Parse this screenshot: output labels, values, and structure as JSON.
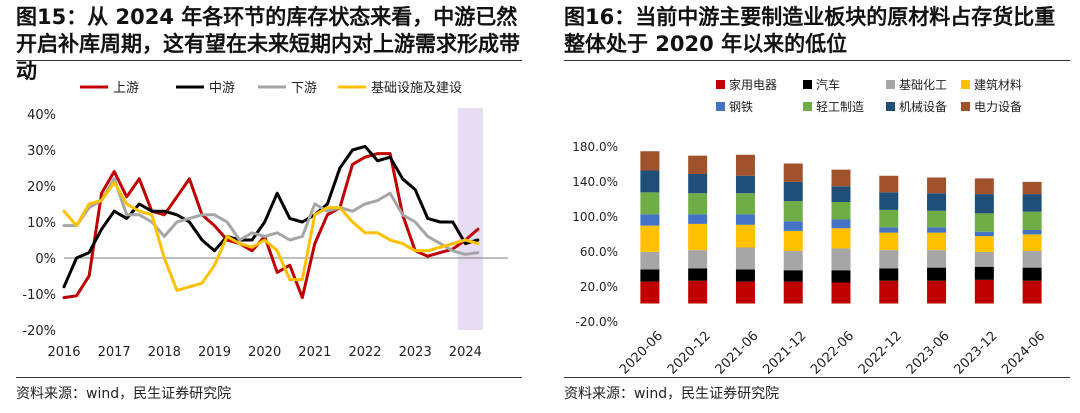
{
  "left_panel": {
    "title": "图15：从 2024 年各环节的库存状态来看，中游已然开启补库周期，这有望在未来短期内对上游需求形成带动",
    "source": "资料来源：wind，民生证券研究院"
  },
  "right_panel": {
    "title": "图16：当前中游主要制造业板块的原材料占存货比重整体处于 2020 年以来的低位",
    "source": "资料来源：wind，民生证券研究院"
  },
  "chart_data": [
    {
      "type": "line",
      "title": "",
      "xlabel": "",
      "ylabel": "",
      "x_tick_labels": [
        "2016",
        "2017",
        "2018",
        "2019",
        "2020",
        "2021",
        "2022",
        "2023",
        "2024"
      ],
      "y_tick_labels": [
        "40%",
        "30%",
        "20%",
        "10%",
        "0%",
        "-10%",
        "-20%"
      ],
      "xlim": [
        2016,
        2024.85
      ],
      "ylim": [
        -20,
        40
      ],
      "grid": false,
      "legend_position": "top",
      "shaded_region": {
        "x_start": 2023.85,
        "x_end": 2024.35,
        "color": "#e6ddf2"
      },
      "series": [
        {
          "name": "上游",
          "color": "#c00000",
          "x": [
            2016,
            2016.25,
            2016.5,
            2016.75,
            2017,
            2017.25,
            2017.5,
            2017.75,
            2018,
            2018.25,
            2018.5,
            2018.75,
            2019,
            2019.25,
            2019.5,
            2019.75,
            2020,
            2020.25,
            2020.5,
            2020.75,
            2021,
            2021.25,
            2021.5,
            2021.75,
            2022,
            2022.25,
            2022.5,
            2022.75,
            2023,
            2023.25,
            2023.5,
            2023.75,
            2024,
            2024.25
          ],
          "values": [
            -11,
            -10.5,
            -5,
            18,
            24,
            17,
            22,
            13,
            12,
            17,
            22,
            12,
            9,
            5,
            4,
            2,
            6,
            -4,
            -2,
            -11,
            4,
            12,
            14,
            26,
            28,
            29,
            29,
            12,
            2,
            0.5,
            1.5,
            2.5,
            5,
            8
          ]
        },
        {
          "name": "中游",
          "color": "#000000",
          "x": [
            2016,
            2016.25,
            2016.5,
            2016.75,
            2017,
            2017.25,
            2017.5,
            2017.75,
            2018,
            2018.25,
            2018.5,
            2018.75,
            2019,
            2019.25,
            2019.5,
            2019.75,
            2020,
            2020.25,
            2020.5,
            2020.75,
            2021,
            2021.25,
            2021.5,
            2021.75,
            2022,
            2022.25,
            2022.5,
            2022.75,
            2023,
            2023.25,
            2023.5,
            2023.75,
            2024,
            2024.25
          ],
          "values": [
            -8,
            0,
            1.5,
            8,
            13,
            11,
            15,
            13,
            13,
            12,
            10,
            5,
            2,
            6,
            5,
            5,
            10,
            18,
            11,
            10,
            12,
            15,
            25,
            30,
            31,
            27,
            28,
            22,
            19,
            11,
            10,
            10,
            4,
            5
          ]
        },
        {
          "name": "下游",
          "color": "#a6a6a6",
          "x": [
            2016,
            2016.25,
            2016.5,
            2016.75,
            2017,
            2017.25,
            2017.5,
            2017.75,
            2018,
            2018.25,
            2018.5,
            2018.75,
            2019,
            2019.25,
            2019.5,
            2019.75,
            2020,
            2020.25,
            2020.5,
            2020.75,
            2021,
            2021.25,
            2021.5,
            2021.75,
            2022,
            2022.25,
            2022.5,
            2022.75,
            2023,
            2023.25,
            2023.5,
            2023.75,
            2024,
            2024.25
          ],
          "values": [
            9,
            9,
            14,
            16,
            22,
            12,
            12,
            10,
            6,
            10,
            11,
            12,
            12,
            10,
            5,
            7,
            6,
            7,
            5,
            6,
            15,
            13,
            14,
            13,
            15,
            16,
            18,
            12,
            10,
            6,
            4,
            2,
            1,
            1.5
          ]
        },
        {
          "name": "基础设施及建设",
          "color": "#ffc000",
          "x": [
            2016,
            2016.25,
            2016.5,
            2016.75,
            2017,
            2017.25,
            2017.5,
            2017.75,
            2018,
            2018.25,
            2018.5,
            2018.75,
            2019,
            2019.25,
            2019.5,
            2019.75,
            2020,
            2020.25,
            2020.5,
            2020.75,
            2021,
            2021.25,
            2021.5,
            2021.75,
            2022,
            2022.25,
            2022.5,
            2022.75,
            2023,
            2023.25,
            2023.5,
            2023.75,
            2024,
            2024.25
          ],
          "values": [
            13,
            9,
            15,
            16,
            21,
            15,
            13,
            12,
            0,
            -9,
            -8,
            -7,
            -2,
            6,
            4,
            3,
            5,
            2,
            -6,
            -6,
            12,
            14,
            14,
            10,
            7,
            7,
            5,
            4,
            2,
            2,
            3,
            4,
            5,
            4
          ]
        }
      ]
    },
    {
      "type": "bar",
      "stacked": true,
      "title": "",
      "xlabel": "",
      "ylabel": "",
      "categories": [
        "2020-06",
        "2020-12",
        "2021-06",
        "2021-12",
        "2022-06",
        "2022-12",
        "2023-06",
        "2023-12",
        "2024-06"
      ],
      "y_tick_labels": [
        "180.0%",
        "140.0%",
        "100.0%",
        "60.0%",
        "20.0%",
        "-20.0%"
      ],
      "ylim": [
        -20,
        180
      ],
      "grid": false,
      "legend_position": "top",
      "series": [
        {
          "name": "家用电器",
          "color": "#c00000",
          "values": [
            25,
            26,
            25,
            25,
            24,
            26,
            26,
            27,
            26
          ]
        },
        {
          "name": "汽车",
          "color": "#000000",
          "values": [
            14,
            14,
            14,
            13,
            14,
            14,
            15,
            15,
            15
          ]
        },
        {
          "name": "基础化工",
          "color": "#a6a6a6",
          "values": [
            20,
            21,
            25,
            22,
            25,
            21,
            20,
            17,
            19
          ]
        },
        {
          "name": "建筑材料",
          "color": "#ffc000",
          "values": [
            30,
            30,
            26,
            23,
            23,
            20,
            20,
            18,
            19
          ]
        },
        {
          "name": "钢铁",
          "color": "#4472c4",
          "values": [
            13,
            11,
            12,
            11,
            10,
            6,
            6,
            5,
            5
          ]
        },
        {
          "name": "轻工制造",
          "color": "#70ad47",
          "values": [
            25,
            24,
            24,
            23,
            20,
            20,
            19,
            21,
            21
          ]
        },
        {
          "name": "机械设备",
          "color": "#1f4e79",
          "values": [
            25,
            22,
            20,
            22,
            18,
            20,
            20,
            22,
            20
          ]
        },
        {
          "name": "电力设备",
          "color": "#a0522d",
          "values": [
            22,
            21,
            24,
            21,
            19,
            19,
            18,
            18,
            14
          ]
        }
      ]
    }
  ]
}
